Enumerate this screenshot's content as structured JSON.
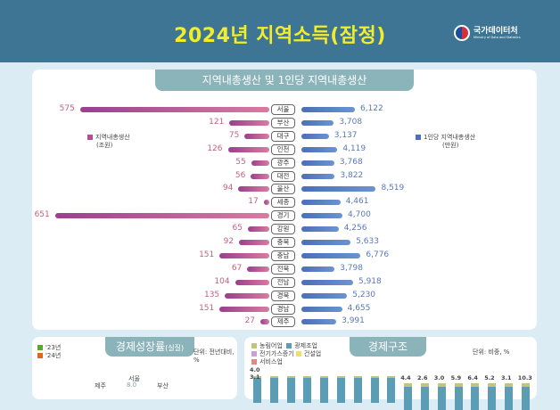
{
  "header": {
    "title": "2024년 지역소득(잠정)",
    "logo_name": "국가데이터처",
    "logo_sub": "Ministry of Data and Statistics"
  },
  "grdp": {
    "title": "지역내총생산 및 1인당 지역내총생산",
    "legend_left": {
      "label": "지역내총생산",
      "unit": "(조원)",
      "color": "#b14f95"
    },
    "legend_right": {
      "label": "1인당 지역내총생산",
      "unit": "(만원)",
      "color": "#4b6fb9"
    },
    "rows": [
      {
        "region": "서울",
        "grdp": 575,
        "per_capita": "6,122",
        "pc": 6122
      },
      {
        "region": "부산",
        "grdp": 121,
        "per_capita": "3,708",
        "pc": 3708
      },
      {
        "region": "대구",
        "grdp": 75,
        "per_capita": "3,137",
        "pc": 3137
      },
      {
        "region": "인천",
        "grdp": 126,
        "per_capita": "4,119",
        "pc": 4119
      },
      {
        "region": "광주",
        "grdp": 55,
        "per_capita": "3,768",
        "pc": 3768
      },
      {
        "region": "대전",
        "grdp": 56,
        "per_capita": "3,822",
        "pc": 3822
      },
      {
        "region": "울산",
        "grdp": 94,
        "per_capita": "8,519",
        "pc": 8519
      },
      {
        "region": "세종",
        "grdp": 17,
        "per_capita": "4,461",
        "pc": 4461
      },
      {
        "region": "경기",
        "grdp": 651,
        "per_capita": "4,700",
        "pc": 4700
      },
      {
        "region": "강원",
        "grdp": 65,
        "per_capita": "4,256",
        "pc": 4256
      },
      {
        "region": "충북",
        "grdp": 92,
        "per_capita": "5,633",
        "pc": 5633
      },
      {
        "region": "충남",
        "grdp": 151,
        "per_capita": "6,776",
        "pc": 6776
      },
      {
        "region": "전북",
        "grdp": 67,
        "per_capita": "3,798",
        "pc": 3798
      },
      {
        "region": "전남",
        "grdp": 104,
        "per_capita": "5,918",
        "pc": 5918
      },
      {
        "region": "경북",
        "grdp": 135,
        "per_capita": "5,230",
        "pc": 5230
      },
      {
        "region": "경남",
        "grdp": 151,
        "per_capita": "4,655",
        "pc": 4655
      },
      {
        "region": "제주",
        "grdp": 27,
        "per_capita": "3,991",
        "pc": 3991
      }
    ]
  },
  "growth": {
    "title": "경제성장률",
    "title_suffix": "(실질)",
    "unit": "단위: 전년대비, %",
    "legend": [
      {
        "label": "'23년",
        "color": "#5aa832"
      },
      {
        "label": "'24년",
        "color": "#e0642a"
      }
    ],
    "radar_labels": {
      "top": "서울",
      "left": "제주",
      "right": "부산",
      "tick": "8.0"
    }
  },
  "structure": {
    "title": "경제구조",
    "unit": "단위: 비중, %",
    "legend": [
      {
        "label": "농림어업",
        "color": "#c2c47a"
      },
      {
        "label": "광제조업",
        "color": "#5a9db5"
      },
      {
        "label": "전기가스증기",
        "color": "#c9a0cf"
      },
      {
        "label": "건설업",
        "color": "#f2dd6a"
      },
      {
        "label": "서비스업",
        "color": "#e08a84"
      }
    ],
    "top_labels": [
      "4.0",
      "",
      "",
      "",
      "",
      "",
      "",
      "",
      "",
      "4.4",
      "2.6",
      "3.0",
      "5.9",
      "6.4",
      "5.2",
      "3.1",
      "10.3"
    ],
    "first_second_label": "3.1"
  }
}
